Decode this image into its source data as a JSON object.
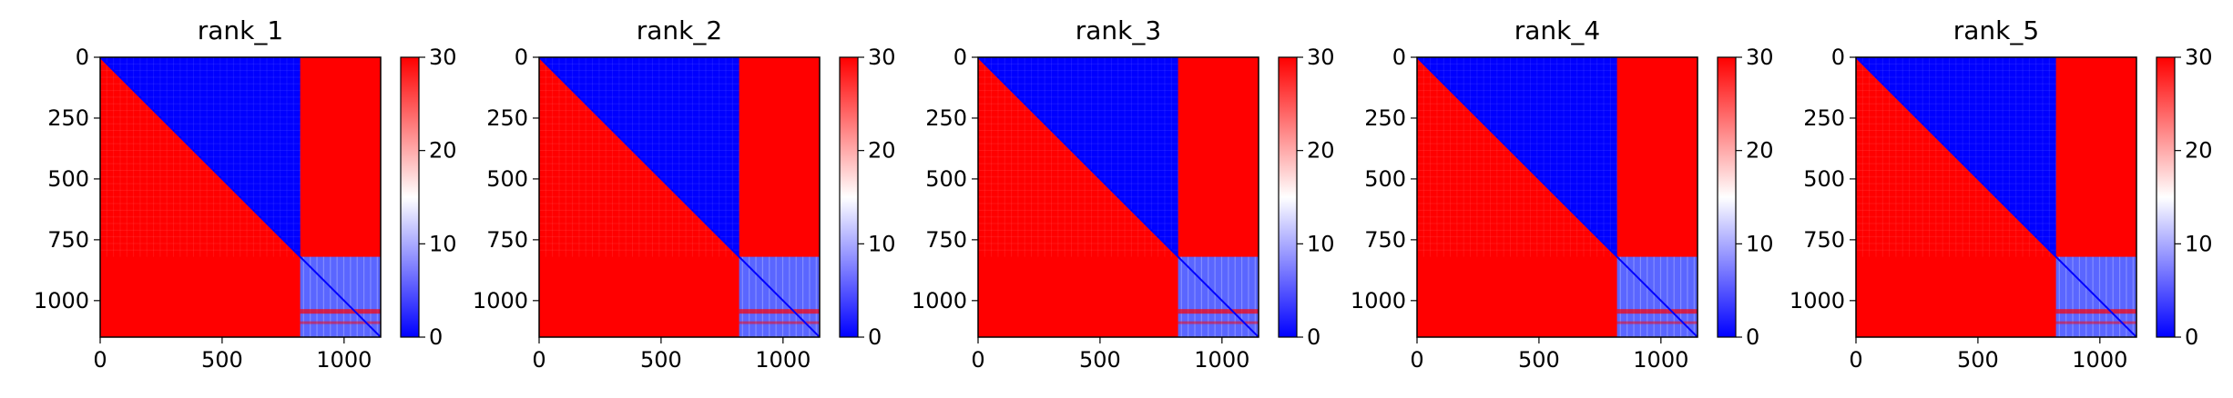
{
  "colors": {
    "low": "#0000ff",
    "mid": "#ffffff",
    "high": "#ff0000",
    "axis": "#000000"
  },
  "chart_data": [
    {
      "type": "heatmap",
      "title": "rank_1",
      "xlim": [
        0,
        1150
      ],
      "ylim": [
        1150,
        0
      ],
      "xticks": [
        0,
        500,
        1000
      ],
      "yticks": [
        0,
        250,
        500,
        750,
        1000
      ],
      "colormap": "bwr",
      "colorbar": {
        "range": [
          0,
          30
        ],
        "ticks": [
          0,
          10,
          20,
          30
        ]
      },
      "blocks": {
        "boundary": 820,
        "within_first_block": "distance grows from 0 on the diagonal to about 30 at far corners",
        "between_blocks": 30,
        "within_second_block": 5
      }
    },
    {
      "type": "heatmap",
      "title": "rank_2",
      "xlim": [
        0,
        1150
      ],
      "ylim": [
        1150,
        0
      ],
      "xticks": [
        0,
        500,
        1000
      ],
      "yticks": [
        0,
        250,
        500,
        750,
        1000
      ],
      "colormap": "bwr",
      "colorbar": {
        "range": [
          0,
          30
        ],
        "ticks": [
          0,
          10,
          20,
          30
        ]
      },
      "blocks": {
        "boundary": 820,
        "within_first_block": "distance grows from 0 on the diagonal to about 30 at far corners",
        "between_blocks": 30,
        "within_second_block": 5
      }
    },
    {
      "type": "heatmap",
      "title": "rank_3",
      "xlim": [
        0,
        1150
      ],
      "ylim": [
        1150,
        0
      ],
      "xticks": [
        0,
        500,
        1000
      ],
      "yticks": [
        0,
        250,
        500,
        750,
        1000
      ],
      "colormap": "bwr",
      "colorbar": {
        "range": [
          0,
          30
        ],
        "ticks": [
          0,
          10,
          20,
          30
        ]
      },
      "blocks": {
        "boundary": 820,
        "within_first_block": "distance grows from 0 on the diagonal to about 30 at far corners",
        "between_blocks": 30,
        "within_second_block": 5
      }
    },
    {
      "type": "heatmap",
      "title": "rank_4",
      "xlim": [
        0,
        1150
      ],
      "ylim": [
        1150,
        0
      ],
      "xticks": [
        0,
        500,
        1000
      ],
      "yticks": [
        0,
        250,
        500,
        750,
        1000
      ],
      "colormap": "bwr",
      "colorbar": {
        "range": [
          0,
          30
        ],
        "ticks": [
          0,
          10,
          20,
          30
        ]
      },
      "blocks": {
        "boundary": 820,
        "within_first_block": "distance grows from 0 on the diagonal to about 30 at far corners",
        "between_blocks": 30,
        "within_second_block": 5
      }
    },
    {
      "type": "heatmap",
      "title": "rank_5",
      "xlim": [
        0,
        1150
      ],
      "ylim": [
        1150,
        0
      ],
      "xticks": [
        0,
        500,
        1000
      ],
      "yticks": [
        0,
        250,
        500,
        750,
        1000
      ],
      "colormap": "bwr",
      "colorbar": {
        "range": [
          0,
          30
        ],
        "ticks": [
          0,
          10,
          20,
          30
        ]
      },
      "blocks": {
        "boundary": 820,
        "within_first_block": "distance grows from 0 on the diagonal to about 30 at far corners",
        "between_blocks": 30,
        "within_second_block": 5
      }
    }
  ]
}
